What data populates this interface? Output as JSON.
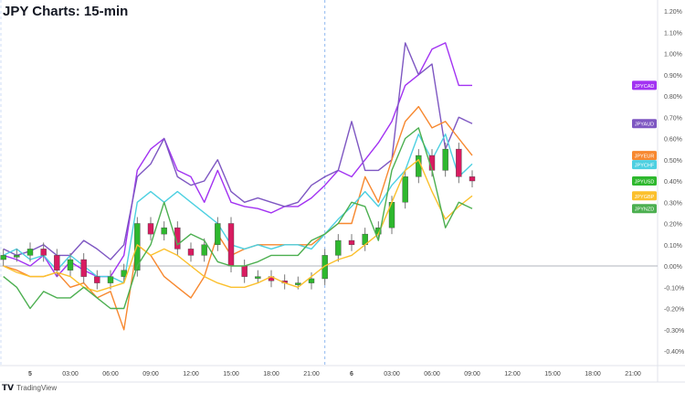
{
  "title": "JPY Charts: 15-min",
  "footer": {
    "logo_text": "TradingView",
    "logo_icon": "tradingview-logo-icon"
  },
  "chart_data": {
    "type": "line",
    "title": "JPY Charts: 15-min",
    "ylabel": "",
    "xlabel": "",
    "ylim": [
      -0.45,
      1.25
    ],
    "y_ticks": [
      "1.20%",
      "1.10%",
      "1.00%",
      "0.90%",
      "0.80%",
      "0.70%",
      "0.60%",
      "0.50%",
      "0.40%",
      "0.30%",
      "0.20%",
      "0.10%",
      "0.00%",
      "-0.10%",
      "-0.20%",
      "-0.30%",
      "-0.40%"
    ],
    "y_tick_values": [
      1.2,
      1.1,
      1.0,
      0.9,
      0.8,
      0.7,
      0.6,
      0.5,
      0.4,
      0.3,
      0.2,
      0.1,
      0,
      -0.1,
      -0.2,
      -0.3,
      -0.4
    ],
    "x_ticks": [
      "5",
      "03:00",
      "06:00",
      "09:00",
      "12:00",
      "15:00",
      "18:00",
      "21:00",
      "6",
      "03:00",
      "06:00",
      "09:00",
      "12:00",
      "15:00",
      "18:00",
      "21:00"
    ],
    "x_tick_times": [
      "5 00:00",
      "5 03:00",
      "5 06:00",
      "5 09:00",
      "5 12:00",
      "5 15:00",
      "5 18:00",
      "5 21:00",
      "6 00:00",
      "6 03:00",
      "6 06:00",
      "6 09:00",
      "6 12:00",
      "6 15:00",
      "6 18:00",
      "6 21:00"
    ],
    "session_break": "5 22:00",
    "grid": false,
    "legend_placement": "right, at last value",
    "x": [
      "4 22:00",
      "4 23:00",
      "5 00:00",
      "5 01:00",
      "5 02:00",
      "5 03:00",
      "5 04:00",
      "5 05:00",
      "5 06:00",
      "5 07:00",
      "5 08:00",
      "5 09:00",
      "5 10:00",
      "5 11:00",
      "5 12:00",
      "5 13:00",
      "5 14:00",
      "5 15:00",
      "5 16:00",
      "5 17:00",
      "5 18:00",
      "5 19:00",
      "5 20:00",
      "5 21:00",
      "5 22:00",
      "5 23:00",
      "6 00:00",
      "6 01:00",
      "6 02:00",
      "6 03:00",
      "6 04:00",
      "6 05:00",
      "6 06:00",
      "6 07:00",
      "6 08:00",
      "6 09:00"
    ],
    "series": [
      {
        "name": "JPYCAD",
        "color": "#A232F2",
        "values": [
          0.05,
          0.03,
          0.0,
          0.05,
          -0.05,
          0.02,
          -0.02,
          -0.05,
          -0.05,
          0.05,
          0.45,
          0.55,
          0.6,
          0.45,
          0.42,
          0.3,
          0.45,
          0.3,
          0.28,
          0.27,
          0.25,
          0.28,
          0.28,
          0.32,
          0.38,
          0.45,
          0.42,
          0.5,
          0.58,
          0.68,
          0.85,
          0.9,
          1.02,
          1.05,
          0.85,
          0.85
        ]
      },
      {
        "name": "JPYAUD",
        "color": "#7E57C2",
        "values": [
          0.08,
          0.05,
          0.07,
          0.1,
          0.05,
          0.05,
          0.12,
          0.08,
          0.03,
          0.1,
          0.42,
          0.48,
          0.6,
          0.42,
          0.38,
          0.4,
          0.5,
          0.35,
          0.3,
          0.32,
          0.3,
          0.28,
          0.3,
          0.38,
          0.42,
          0.45,
          0.68,
          0.45,
          0.45,
          0.5,
          1.05,
          0.9,
          0.95,
          0.55,
          0.7,
          0.67
        ]
      },
      {
        "name": "JPYEUR",
        "color": "#F7882F",
        "values": [
          0.0,
          -0.02,
          -0.05,
          -0.05,
          -0.03,
          -0.1,
          -0.08,
          -0.15,
          -0.12,
          -0.3,
          0.1,
          0.05,
          -0.05,
          -0.1,
          -0.15,
          -0.05,
          0.15,
          0.05,
          0.08,
          0.1,
          0.1,
          0.1,
          0.1,
          0.1,
          0.15,
          0.2,
          0.2,
          0.42,
          0.3,
          0.5,
          0.68,
          0.75,
          0.65,
          0.68,
          0.6,
          0.52
        ]
      },
      {
        "name": "JPYCHF",
        "color": "#4DD0E1",
        "values": [
          0.05,
          0.08,
          0.03,
          0.05,
          -0.02,
          0.05,
          0.0,
          -0.05,
          -0.05,
          -0.08,
          0.3,
          0.35,
          0.3,
          0.35,
          0.3,
          0.25,
          0.2,
          0.1,
          0.08,
          0.1,
          0.08,
          0.1,
          0.1,
          0.08,
          0.15,
          0.22,
          0.28,
          0.35,
          0.28,
          0.38,
          0.45,
          0.62,
          0.5,
          0.62,
          0.42,
          0.48
        ]
      },
      {
        "name": "JPYUSD",
        "color": "#2EB82E",
        "type": "candles",
        "down_color": "#D81B60",
        "values": [
          0.05,
          0.05,
          0.08,
          0.05,
          -0.02,
          0.03,
          -0.05,
          -0.08,
          -0.05,
          -0.02,
          0.2,
          0.15,
          0.18,
          0.08,
          0.05,
          0.1,
          0.2,
          0.0,
          -0.05,
          -0.05,
          -0.07,
          -0.08,
          -0.08,
          -0.06,
          0.05,
          0.12,
          0.1,
          0.15,
          0.18,
          0.3,
          0.42,
          0.52,
          0.45,
          0.55,
          0.42,
          0.4
        ]
      },
      {
        "name": "JPYGBP",
        "color": "#FBC02D",
        "values": [
          0.0,
          -0.03,
          -0.05,
          -0.05,
          -0.03,
          -0.05,
          -0.1,
          -0.12,
          -0.1,
          -0.08,
          0.1,
          0.05,
          0.08,
          0.05,
          0.0,
          -0.05,
          -0.08,
          -0.1,
          -0.1,
          -0.08,
          -0.05,
          -0.08,
          -0.1,
          -0.05,
          0.0,
          0.03,
          0.05,
          0.1,
          0.15,
          0.3,
          0.45,
          0.5,
          0.35,
          0.22,
          0.28,
          0.33
        ]
      },
      {
        "name": "JPYNZD",
        "color": "#4CAF50",
        "values": [
          -0.05,
          -0.1,
          -0.2,
          -0.12,
          -0.15,
          -0.15,
          -0.1,
          -0.15,
          -0.2,
          -0.2,
          0.0,
          0.1,
          0.3,
          0.1,
          0.15,
          0.12,
          0.02,
          0.0,
          0.0,
          0.02,
          0.05,
          0.05,
          0.05,
          0.12,
          0.15,
          0.2,
          0.3,
          0.28,
          0.12,
          0.45,
          0.6,
          0.65,
          0.45,
          0.18,
          0.3,
          0.27
        ]
      }
    ]
  }
}
